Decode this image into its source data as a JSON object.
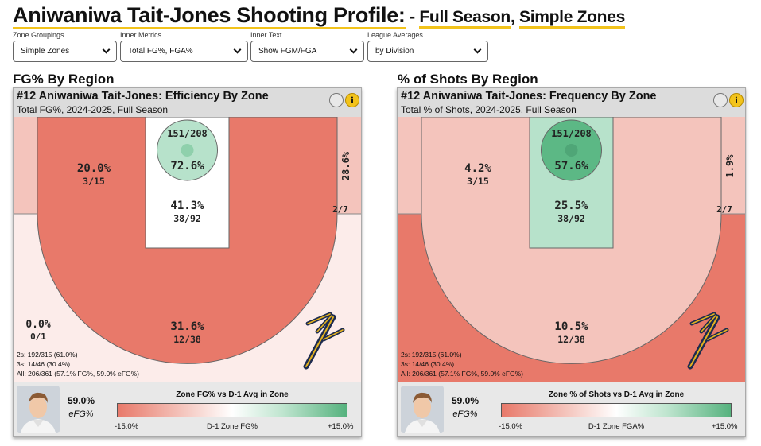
{
  "page": {
    "title_main": "Aniwaniwa Tait-Jones Shooting Profile:",
    "title_dash": " - ",
    "title_part1": "Full Season",
    "title_comma": ", ",
    "title_part2": "Simple Zones"
  },
  "filters": [
    {
      "label": "Zone Groupings",
      "value": "Simple Zones"
    },
    {
      "label": "Inner Metrics",
      "value": "Total FG%, FGA%"
    },
    {
      "label": "Inner Text",
      "value": "Show FGM/FGA"
    },
    {
      "label": "League Averages",
      "value": "by Division"
    }
  ],
  "colors": {
    "accent_underline": "#f2c31b",
    "red_strong": "#e8796a",
    "red_light": "#f4c4bc",
    "red_faint": "#fcecea",
    "green_light": "#b7e2cb",
    "green_mid": "#5cb885"
  },
  "left": {
    "section_title": "FG% By Region",
    "card_title": "#12 Aniwaniwa Tait-Jones: Efficiency By Zone",
    "card_subtitle": "Total FG%, 2024-2025, Full Season",
    "zones": {
      "rim": {
        "pct": "72.6%",
        "frac": "151/208"
      },
      "paint": {
        "pct": "41.3%",
        "frac": "38/92"
      },
      "midrange": {
        "pct": "20.0%",
        "frac": "3/15"
      },
      "corner_left": {
        "pct": "0.0%",
        "frac": "0/1"
      },
      "corner_right": {
        "pct": "28.6%",
        "frac": "2/7"
      },
      "three": {
        "pct": "31.6%",
        "frac": "12/38"
      }
    },
    "summary": [
      "2s: 192/315 (61.0%)",
      "3s: 14/46 (30.4%)",
      "All: 206/361 (57.1% FG%, 59.0% eFG%)"
    ],
    "footer": {
      "efg_value": "59.0%",
      "efg_label": "eFG%",
      "scale_title": "Zone FG% vs D-1 Avg in Zone",
      "scale_min": "-15.0%",
      "scale_mid": "D-1 Zone FG%",
      "scale_max": "+15.0%"
    }
  },
  "right": {
    "section_title": "% of Shots By Region",
    "card_title": "#12 Aniwaniwa Tait-Jones: Frequency By Zone",
    "card_subtitle": "Total % of Shots, 2024-2025, Full Season",
    "zones": {
      "rim": {
        "pct": "57.6%",
        "frac": "151/208"
      },
      "paint": {
        "pct": "25.5%",
        "frac": "38/92"
      },
      "midrange": {
        "pct": "4.2%",
        "frac": "3/15"
      },
      "corner_right": {
        "pct": "1.9%",
        "frac": "2/7"
      },
      "three": {
        "pct": "10.5%",
        "frac": "12/38"
      }
    },
    "summary": [
      "2s: 192/315 (61.0%)",
      "3s: 14/46 (30.4%)",
      "All: 206/361 (57.1% FG%, 59.0% eFG%)"
    ],
    "footer": {
      "efg_value": "59.0%",
      "efg_label": "eFG%",
      "scale_title": "Zone % of Shots vs D-1 Avg in Zone",
      "scale_min": "-15.0%",
      "scale_mid": "D-1 Zone FGA%",
      "scale_max": "+15.0%"
    }
  }
}
